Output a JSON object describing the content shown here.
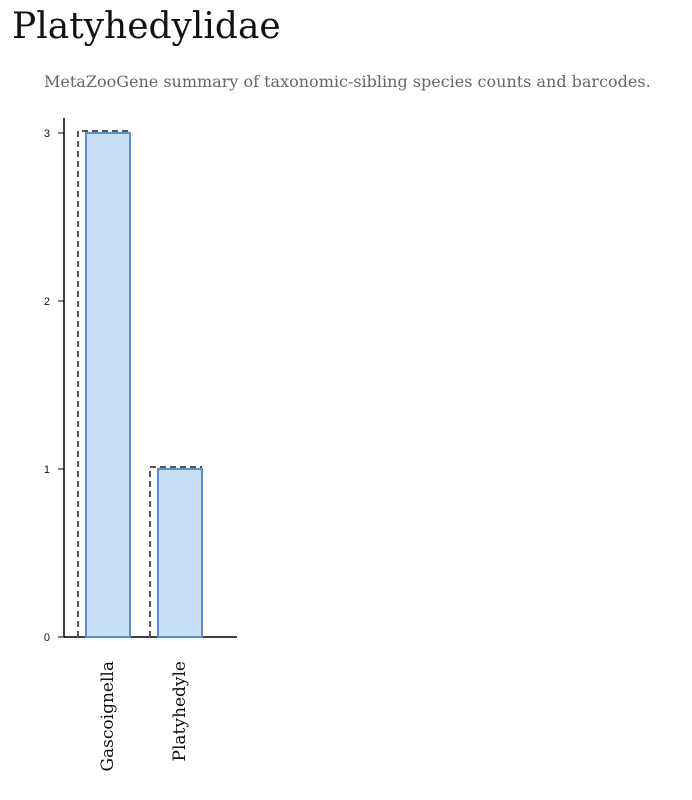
{
  "page": {
    "title": "Platyhedylidae",
    "subtitle": "MetaZooGene summary of taxonomic-sibling species counts and barcodes."
  },
  "chart_data": {
    "type": "bar",
    "categories": [
      "Gascoignella",
      "Platyhedyle"
    ],
    "series": [
      {
        "values": [
          3,
          1
        ],
        "style": "solid",
        "fill": "#c8e0f7",
        "stroke": "#5b8fc7"
      },
      {
        "values": [
          3,
          1
        ],
        "style": "dashed",
        "stroke": "#555555"
      }
    ],
    "yticks": [
      0,
      1,
      2,
      3
    ],
    "ylim": [
      0,
      3.1
    ],
    "grid": false
  }
}
